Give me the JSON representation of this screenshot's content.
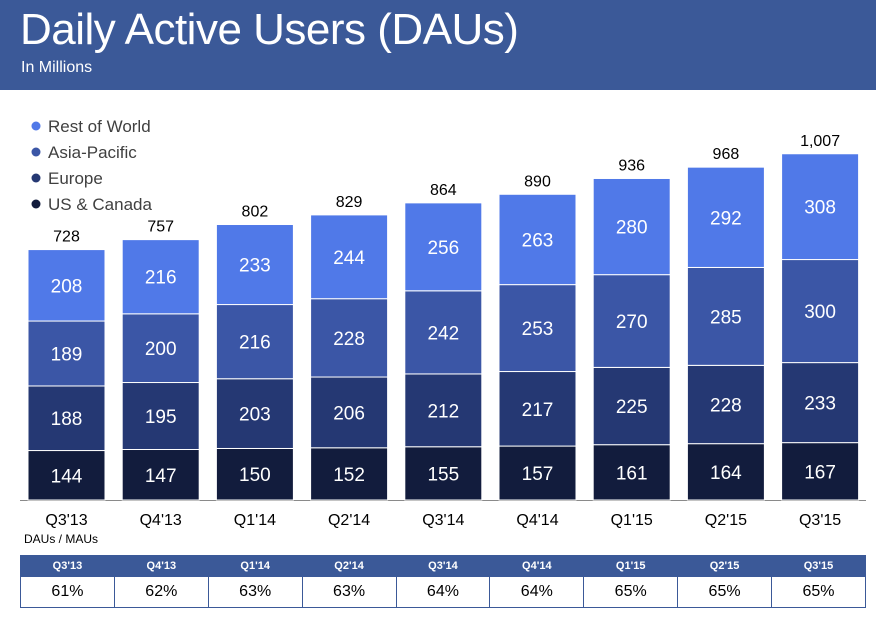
{
  "header": {
    "title": "Daily Active Users (DAUs)",
    "subtitle": "In Millions"
  },
  "colors": {
    "header_bg": "#3b5998",
    "rest_of_world": "#5079e8",
    "asia_pacific": "#3b56a6",
    "europe": "#253873",
    "us_canada": "#121c3d"
  },
  "chart_data": {
    "type": "bar",
    "stacked": true,
    "title": "Daily Active Users (DAUs)",
    "subtitle": "In Millions",
    "categories": [
      "Q3'13",
      "Q4'13",
      "Q1'14",
      "Q2'14",
      "Q3'14",
      "Q4'14",
      "Q1'15",
      "Q2'15",
      "Q3'15"
    ],
    "series": [
      {
        "name": "US & Canada",
        "values": [
          144,
          147,
          150,
          152,
          155,
          157,
          161,
          164,
          167
        ]
      },
      {
        "name": "Europe",
        "values": [
          188,
          195,
          203,
          206,
          212,
          217,
          225,
          228,
          233
        ]
      },
      {
        "name": "Asia-Pacific",
        "values": [
          189,
          200,
          216,
          228,
          242,
          253,
          270,
          285,
          300
        ]
      },
      {
        "name": "Rest of World",
        "values": [
          208,
          216,
          233,
          244,
          256,
          263,
          280,
          292,
          308
        ]
      }
    ],
    "totals": [
      "728",
      "757",
      "802",
      "829",
      "864",
      "890",
      "936",
      "968",
      "1,007"
    ],
    "legend_order": [
      "Rest of World",
      "Asia-Pacific",
      "Europe",
      "US & Canada"
    ],
    "legend_placement": "top-left",
    "grid": false,
    "ylim": [
      0,
      1100
    ]
  },
  "ratio_table": {
    "label": "DAUs / MAUs",
    "headers": [
      "Q3'13",
      "Q4'13",
      "Q1'14",
      "Q2'14",
      "Q3'14",
      "Q4'14",
      "Q1'15",
      "Q2'15",
      "Q3'15"
    ],
    "values": [
      "61%",
      "62%",
      "63%",
      "63%",
      "64%",
      "64%",
      "65%",
      "65%",
      "65%"
    ]
  }
}
